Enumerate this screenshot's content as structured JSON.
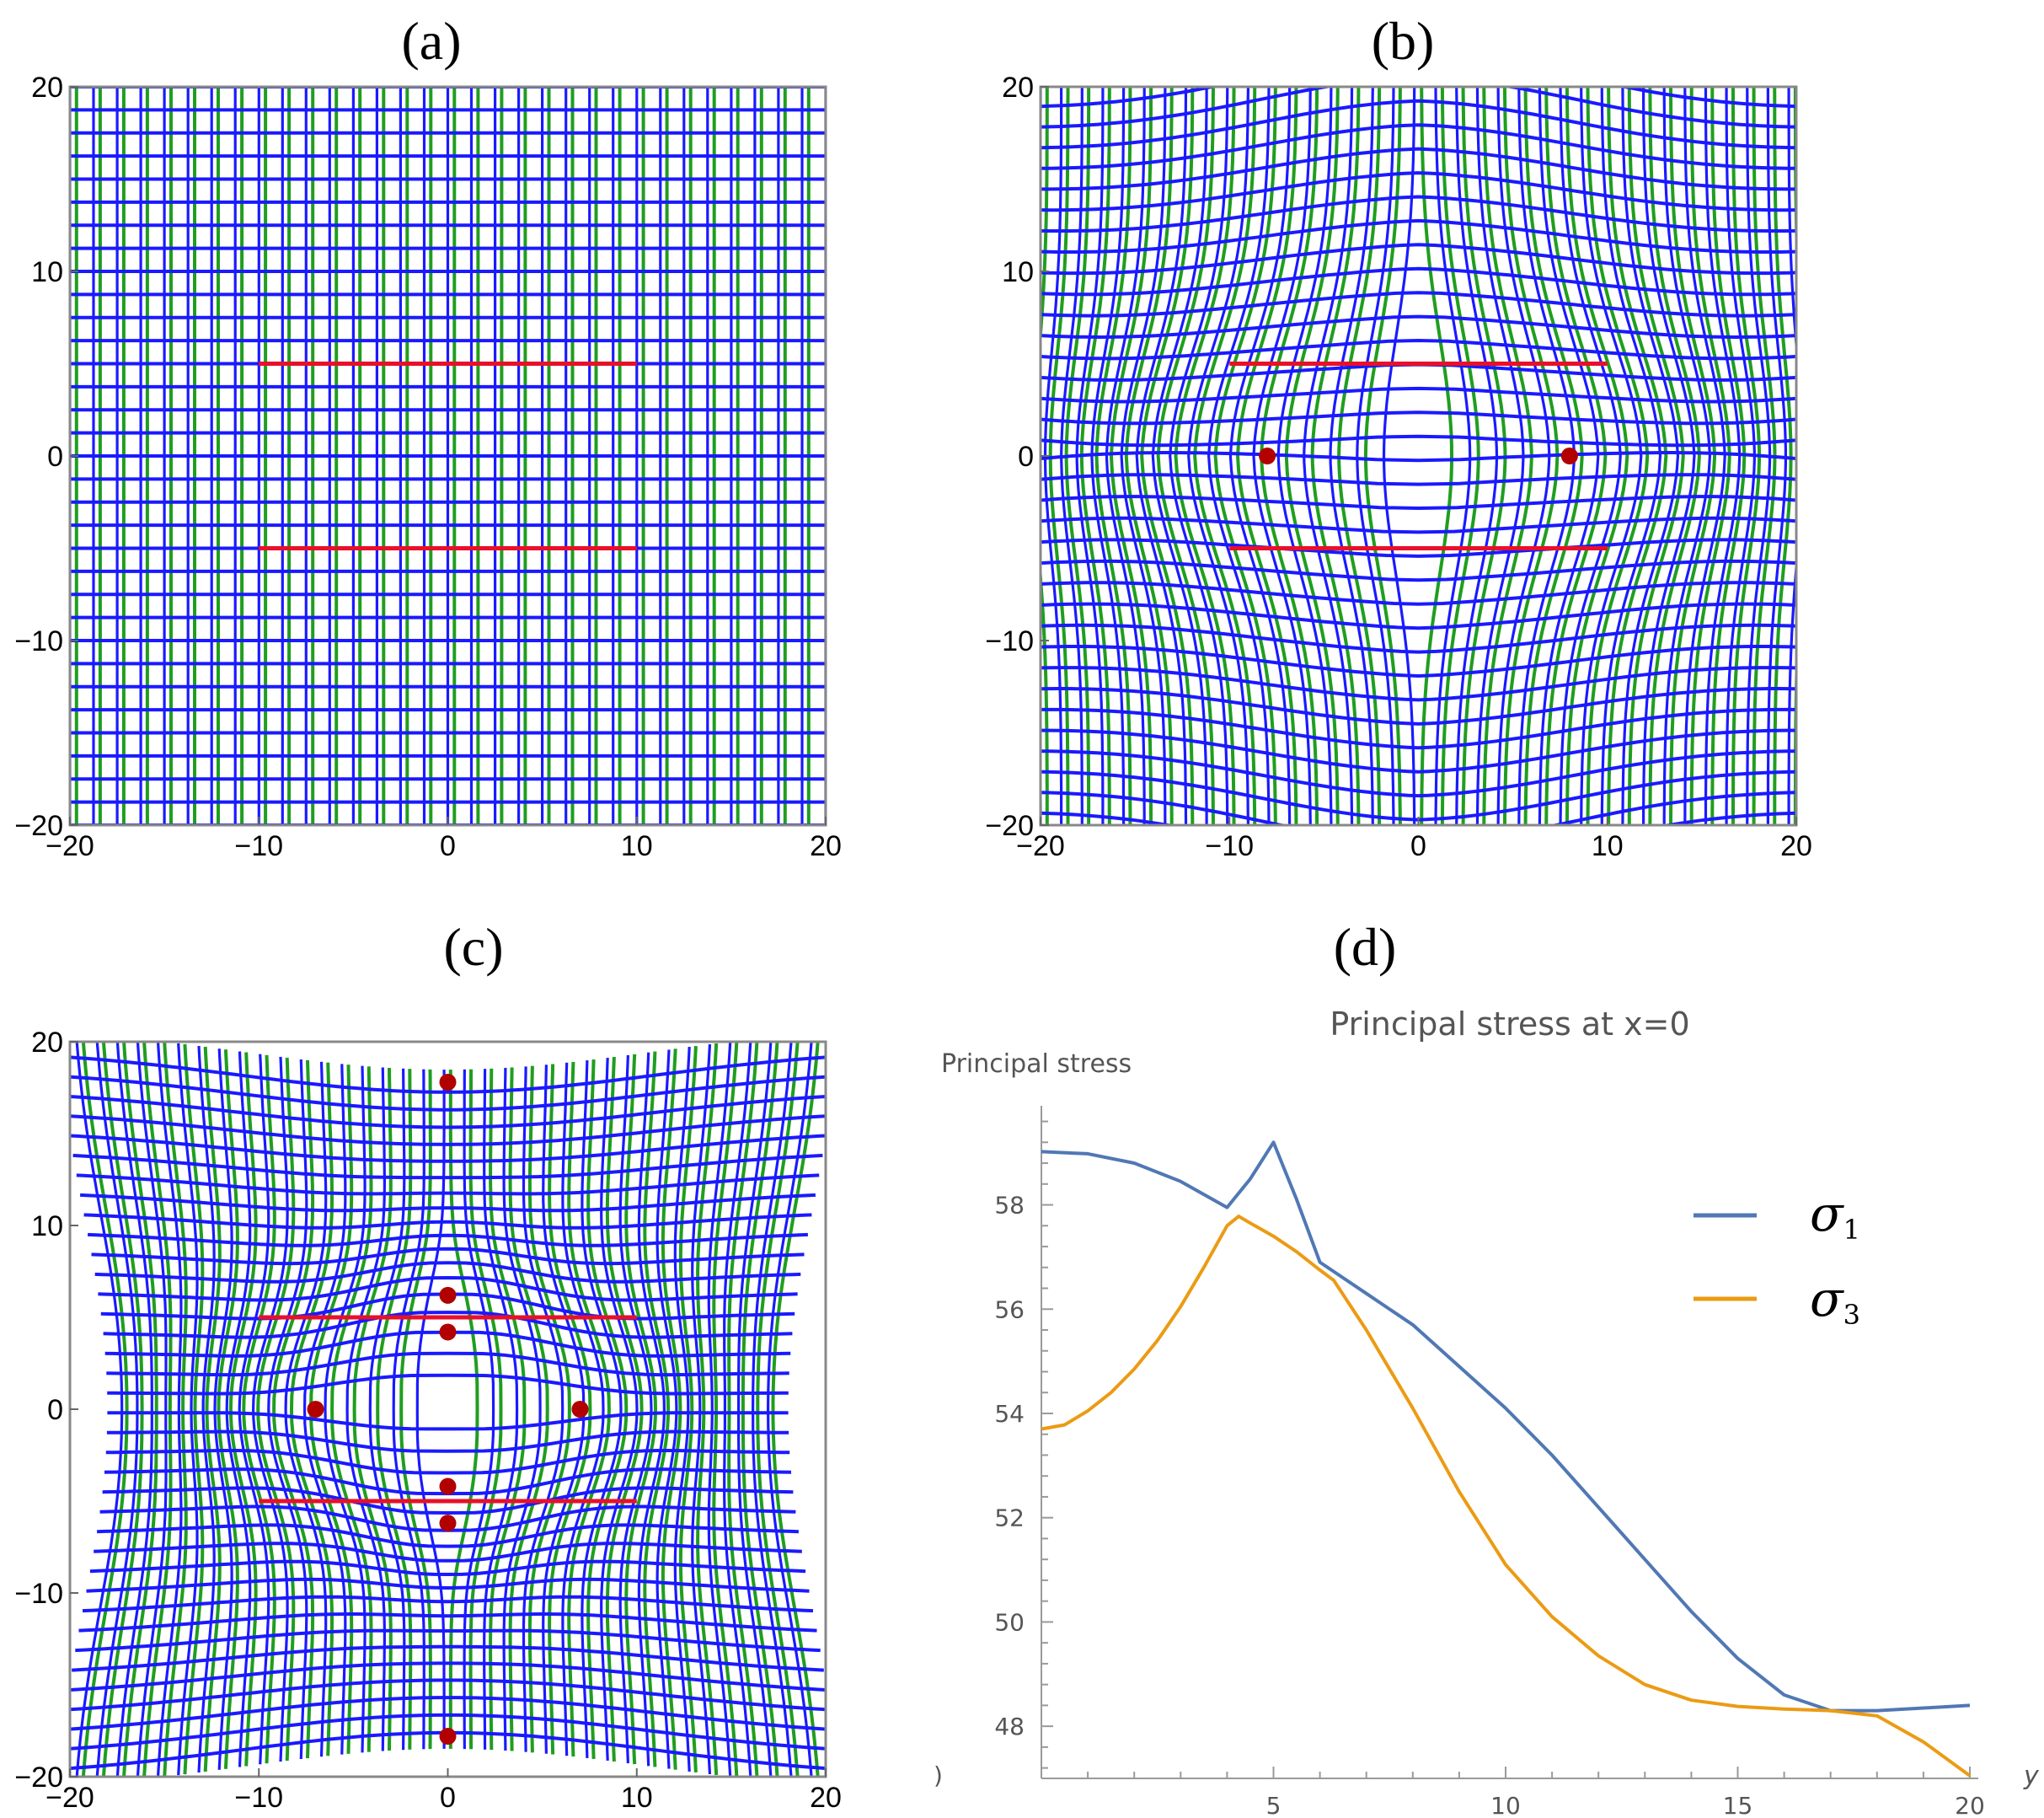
{
  "colors": {
    "trajectory_blue": "#1a1aff",
    "trajectory_green": "#1f9e1f",
    "crack_red": "#e8102a",
    "point_darkred": "#b20000",
    "sigma1": "#5078b4",
    "sigma3": "#eb9b14",
    "axis_gray": "#7a7a7a"
  },
  "chart_data": [
    {
      "type": "stress-trajectory-field",
      "panel_label": "(a)",
      "variant": "uniform",
      "xlim": [
        -20,
        20
      ],
      "ylim": [
        -20,
        20
      ],
      "xticks": [
        "−20",
        "−10",
        "0",
        "10",
        "20"
      ],
      "yticks": [
        "−20",
        "−10",
        "0",
        "10",
        "20"
      ],
      "cracks": [
        {
          "x1": -10,
          "y1": 5,
          "x2": 10,
          "y2": 5
        },
        {
          "x1": -10,
          "y1": -5,
          "x2": 10,
          "y2": -5
        }
      ],
      "singular_points": []
    },
    {
      "type": "stress-trajectory-field",
      "panel_label": "(b)",
      "variant": "two-point",
      "xlim": [
        -20,
        20
      ],
      "ylim": [
        -20,
        20
      ],
      "xticks": [
        "−20",
        "−10",
        "0",
        "10",
        "20"
      ],
      "yticks": [
        "−20",
        "−10",
        "0",
        "10",
        "20"
      ],
      "cracks": [
        {
          "x1": -10,
          "y1": 5,
          "x2": 10,
          "y2": 5
        },
        {
          "x1": -10,
          "y1": -5,
          "x2": 10,
          "y2": -5
        }
      ],
      "singular_points": [
        {
          "x": -8,
          "y": 0
        },
        {
          "x": 8,
          "y": 0
        }
      ]
    },
    {
      "type": "stress-trajectory-field",
      "panel_label": "(c)",
      "variant": "multi-point",
      "xlim": [
        -20,
        20
      ],
      "ylim": [
        -20,
        20
      ],
      "xticks": [
        "−20",
        "−10",
        "0",
        "10",
        "20"
      ],
      "yticks": [
        "−20",
        "−10",
        "0",
        "10",
        "20"
      ],
      "cracks": [
        {
          "x1": -10,
          "y1": 5,
          "x2": 10,
          "y2": 5
        },
        {
          "x1": -10,
          "y1": -5,
          "x2": 10,
          "y2": -5
        }
      ],
      "singular_points": [
        {
          "x": 0,
          "y": 17.8
        },
        {
          "x": 0,
          "y": 6.2
        },
        {
          "x": 0,
          "y": 4.2
        },
        {
          "x": -7,
          "y": 0
        },
        {
          "x": 7,
          "y": 0
        },
        {
          "x": 0,
          "y": -4.2
        },
        {
          "x": 0,
          "y": -6.2
        },
        {
          "x": 0,
          "y": -17.8
        }
      ]
    },
    {
      "type": "line",
      "panel_label": "(d)",
      "title": "Principal stress at x=0",
      "ylabel": "Principal stress",
      "xlabel": "y",
      "xlim": [
        0,
        20
      ],
      "ylim": [
        47,
        59.9
      ],
      "xticks": [
        5,
        10,
        15,
        20
      ],
      "yticks": [
        48,
        50,
        52,
        54,
        56,
        58
      ],
      "series": [
        {
          "name": "σ₁",
          "x": [
            0,
            1,
            2,
            3,
            4,
            4.5,
            5,
            5.5,
            6,
            7,
            8,
            9,
            10,
            11,
            12,
            13,
            14,
            15,
            16,
            17,
            18,
            19,
            20
          ],
          "values": [
            59.02,
            58.98,
            58.8,
            58.45,
            57.95,
            58.5,
            59.2,
            58.1,
            56.9,
            56.3,
            55.7,
            54.9,
            54.1,
            53.2,
            52.2,
            51.2,
            50.2,
            49.3,
            48.6,
            48.3,
            48.3,
            48.35,
            48.4
          ]
        },
        {
          "name": "σ₃",
          "x": [
            0,
            0.5,
            1,
            1.5,
            2,
            2.5,
            3,
            3.5,
            4,
            4.25,
            4.5,
            5,
            5.5,
            6,
            6.3,
            7,
            8,
            9,
            10,
            11,
            12,
            13,
            14,
            15,
            16,
            17,
            18,
            19,
            20
          ],
          "values": [
            53.7,
            53.78,
            54.05,
            54.4,
            54.85,
            55.4,
            56.05,
            56.8,
            57.6,
            57.78,
            57.65,
            57.4,
            57.1,
            56.75,
            56.55,
            55.6,
            54.1,
            52.5,
            51.1,
            50.1,
            49.35,
            48.8,
            48.5,
            48.38,
            48.33,
            48.3,
            48.2,
            47.7,
            47.05
          ]
        }
      ],
      "legend": [
        {
          "label": "σ",
          "sub": "1"
        },
        {
          "label": "σ",
          "sub": "3"
        }
      ],
      "stray_tick_label": ")"
    }
  ]
}
